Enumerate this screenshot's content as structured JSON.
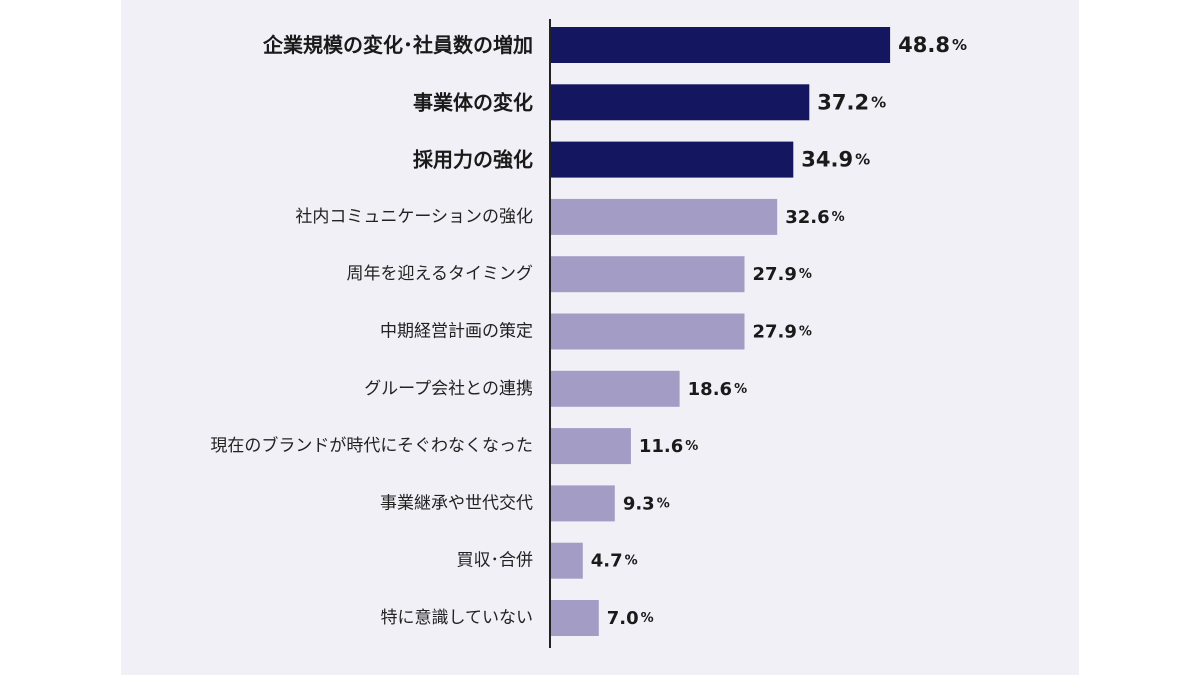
{
  "chart_data": {
    "type": "bar",
    "orientation": "horizontal",
    "title": "",
    "xlabel": "",
    "ylabel": "",
    "unit": "%",
    "xlim": [
      0,
      50
    ],
    "grid": false,
    "legend": "none",
    "categories": [
      "企業規模の変化･社員数の増加",
      "事業体の変化",
      "採用力の強化",
      "社内コミュニケーションの強化",
      "周年を迎えるタイミング",
      "中期経営計画の策定",
      "グループ会社との連携",
      "現在のブランドが時代にそぐわなくなった",
      "事業継承や世代交代",
      "買収･合併",
      "特に意識していない"
    ],
    "values": [
      48.8,
      37.2,
      34.9,
      32.6,
      27.9,
      27.9,
      18.6,
      11.6,
      9.3,
      4.7,
      7.0
    ],
    "value_labels": [
      "48.8",
      "37.2",
      "34.9",
      "32.6",
      "27.9",
      "27.9",
      "18.6",
      "11.6",
      "9.3",
      "4.7",
      "7.0"
    ],
    "highlighted": [
      true,
      true,
      true,
      false,
      false,
      false,
      false,
      false,
      false,
      false,
      false
    ],
    "colors": {
      "highlight": "#141660",
      "normal": "#a39dc6",
      "axis": "#222222",
      "background": "#f1f0f6"
    }
  }
}
